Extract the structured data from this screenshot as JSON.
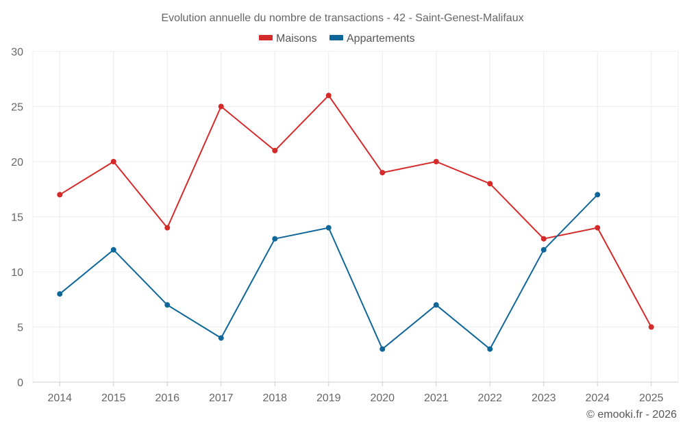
{
  "chart_data": {
    "type": "line",
    "title": "Evolution annuelle du nombre de transactions - 42 - Saint-Genest-Malifaux",
    "categories": [
      "2014",
      "2015",
      "2016",
      "2017",
      "2018",
      "2019",
      "2020",
      "2021",
      "2022",
      "2023",
      "2024",
      "2025"
    ],
    "ylim": [
      0,
      30
    ],
    "yticks": [
      "0",
      "5",
      "10",
      "15",
      "20",
      "25",
      "30"
    ],
    "grid": true,
    "legend_position": "top-center",
    "series": [
      {
        "name": "Maisons",
        "color": "#d42a2a",
        "values": [
          17,
          20,
          14,
          25,
          21,
          26,
          19,
          20,
          18,
          13,
          14,
          5
        ]
      },
      {
        "name": "Appartements",
        "color": "#0e6699",
        "values": [
          8,
          12,
          7,
          4,
          13,
          14,
          3,
          7,
          3,
          12,
          17,
          null
        ]
      }
    ],
    "xlabel": "",
    "ylabel": ""
  },
  "credit": "© emooki.fr - 2026"
}
